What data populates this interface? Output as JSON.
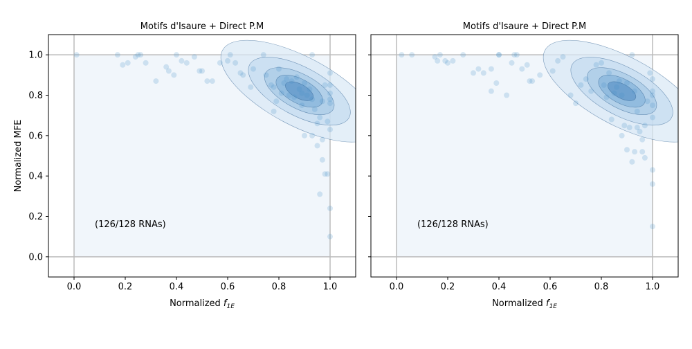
{
  "chart_data": [
    {
      "type": "scatter",
      "overlay": "kde-contours",
      "title": "Motifs d'Isaure + Direct P.M",
      "xlabel_main": "Normalized ",
      "xlabel_sub": "1E",
      "xlabel_italic": "f",
      "ylabel": "Normalized MFE",
      "annotation": "(126/128 RNAs)",
      "xlim": [
        -0.1,
        1.1
      ],
      "ylim": [
        -0.1,
        1.1
      ],
      "xticks": [
        "0.0",
        "0.2",
        "0.4",
        "0.6",
        "0.8",
        "1.0"
      ],
      "yticks": [
        "0.0",
        "0.2",
        "0.4",
        "0.6",
        "0.8",
        "1.0"
      ],
      "color": "#4a90c8",
      "kde_peak": [
        0.88,
        0.82
      ],
      "points": [
        [
          0.01,
          1.0
        ],
        [
          0.17,
          1.0
        ],
        [
          0.19,
          0.95
        ],
        [
          0.21,
          0.96
        ],
        [
          0.24,
          0.99
        ],
        [
          0.25,
          1.0
        ],
        [
          0.26,
          1.0
        ],
        [
          0.28,
          0.96
        ],
        [
          0.32,
          0.87
        ],
        [
          0.36,
          0.94
        ],
        [
          0.37,
          0.92
        ],
        [
          0.39,
          0.9
        ],
        [
          0.4,
          1.0
        ],
        [
          0.42,
          0.97
        ],
        [
          0.44,
          0.96
        ],
        [
          0.47,
          0.99
        ],
        [
          0.49,
          0.92
        ],
        [
          0.5,
          0.92
        ],
        [
          0.52,
          0.87
        ],
        [
          0.54,
          0.87
        ],
        [
          0.57,
          0.96
        ],
        [
          0.6,
          0.97
        ],
        [
          0.61,
          1.0
        ],
        [
          0.63,
          0.96
        ],
        [
          0.65,
          0.91
        ],
        [
          0.66,
          0.9
        ],
        [
          0.69,
          0.84
        ],
        [
          0.7,
          0.93
        ],
        [
          0.74,
          1.0
        ],
        [
          0.75,
          0.9
        ],
        [
          0.77,
          0.85
        ],
        [
          0.78,
          0.84
        ],
        [
          0.78,
          0.72
        ],
        [
          0.79,
          0.77
        ],
        [
          0.8,
          0.93
        ],
        [
          0.81,
          0.81
        ],
        [
          0.82,
          0.86
        ],
        [
          0.83,
          0.88
        ],
        [
          0.84,
          0.8
        ],
        [
          0.85,
          0.87
        ],
        [
          0.86,
          0.79
        ],
        [
          0.87,
          0.89
        ],
        [
          0.88,
          0.83
        ],
        [
          0.89,
          0.81
        ],
        [
          0.89,
          0.75
        ],
        [
          0.9,
          0.6
        ],
        [
          0.9,
          0.86
        ],
        [
          0.91,
          0.8
        ],
        [
          0.92,
          0.83
        ],
        [
          0.93,
          0.6
        ],
        [
          0.93,
          1.0
        ],
        [
          0.93,
          0.78
        ],
        [
          0.94,
          0.73
        ],
        [
          0.95,
          0.66
        ],
        [
          0.95,
          0.55
        ],
        [
          0.96,
          0.69
        ],
        [
          0.96,
          0.31
        ],
        [
          0.97,
          0.58
        ],
        [
          0.97,
          0.77
        ],
        [
          0.97,
          0.48
        ],
        [
          0.98,
          0.41
        ],
        [
          0.98,
          0.85
        ],
        [
          0.99,
          0.41
        ],
        [
          0.99,
          0.67
        ],
        [
          1.0,
          0.91
        ],
        [
          1.0,
          0.85
        ],
        [
          1.0,
          0.81
        ],
        [
          1.0,
          0.78
        ],
        [
          1.0,
          0.76
        ],
        [
          1.0,
          0.63
        ],
        [
          1.0,
          0.24
        ],
        [
          1.0,
          0.1
        ]
      ]
    },
    {
      "type": "scatter",
      "overlay": "kde-contours",
      "title": "Motifs d'Isaure + Direct P.M",
      "xlabel_main": "Normalized ",
      "xlabel_sub": "1E",
      "xlabel_italic": "f",
      "ylabel": "",
      "annotation": "(126/128 RNAs)",
      "xlim": [
        -0.1,
        1.1
      ],
      "ylim": [
        -0.1,
        1.1
      ],
      "xticks": [
        "0.0",
        "0.2",
        "0.4",
        "0.6",
        "0.8",
        "1.0"
      ],
      "yticks": [
        "0.0",
        "0.2",
        "0.4",
        "0.6",
        "0.8",
        "1.0"
      ],
      "color": "#4a90c8",
      "kde_peak": [
        0.88,
        0.82
      ],
      "points": [
        [
          0.02,
          1.0
        ],
        [
          0.06,
          1.0
        ],
        [
          0.15,
          0.99
        ],
        [
          0.16,
          0.97
        ],
        [
          0.17,
          1.0
        ],
        [
          0.19,
          0.97
        ],
        [
          0.2,
          0.96
        ],
        [
          0.22,
          0.97
        ],
        [
          0.26,
          1.0
        ],
        [
          0.3,
          0.91
        ],
        [
          0.32,
          0.93
        ],
        [
          0.34,
          0.91
        ],
        [
          0.37,
          0.93
        ],
        [
          0.37,
          0.82
        ],
        [
          0.39,
          0.86
        ],
        [
          0.4,
          1.0
        ],
        [
          0.4,
          1.0
        ],
        [
          0.43,
          0.8
        ],
        [
          0.45,
          0.96
        ],
        [
          0.46,
          1.0
        ],
        [
          0.47,
          1.0
        ],
        [
          0.49,
          0.93
        ],
        [
          0.51,
          0.95
        ],
        [
          0.52,
          0.87
        ],
        [
          0.53,
          0.87
        ],
        [
          0.56,
          0.9
        ],
        [
          0.61,
          0.92
        ],
        [
          0.63,
          0.97
        ],
        [
          0.65,
          0.99
        ],
        [
          0.68,
          0.8
        ],
        [
          0.7,
          0.76
        ],
        [
          0.72,
          0.85
        ],
        [
          0.74,
          0.88
        ],
        [
          0.76,
          0.82
        ],
        [
          0.78,
          0.95
        ],
        [
          0.8,
          0.96
        ],
        [
          0.81,
          0.85
        ],
        [
          0.82,
          0.79
        ],
        [
          0.83,
          0.91
        ],
        [
          0.84,
          0.68
        ],
        [
          0.85,
          0.81
        ],
        [
          0.86,
          0.84
        ],
        [
          0.87,
          0.87
        ],
        [
          0.88,
          0.6
        ],
        [
          0.88,
          0.8
        ],
        [
          0.89,
          0.65
        ],
        [
          0.9,
          0.53
        ],
        [
          0.9,
          0.86
        ],
        [
          0.91,
          0.64
        ],
        [
          0.92,
          0.47
        ],
        [
          0.92,
          1.0
        ],
        [
          0.93,
          0.52
        ],
        [
          0.93,
          0.82
        ],
        [
          0.94,
          0.64
        ],
        [
          0.94,
          0.72
        ],
        [
          0.95,
          0.62
        ],
        [
          0.96,
          0.58
        ],
        [
          0.96,
          0.52
        ],
        [
          0.97,
          0.49
        ],
        [
          0.97,
          0.65
        ],
        [
          0.98,
          0.77
        ],
        [
          0.99,
          0.91
        ],
        [
          1.0,
          0.88
        ],
        [
          1.0,
          0.82
        ],
        [
          1.0,
          0.8
        ],
        [
          1.0,
          0.75
        ],
        [
          1.0,
          0.69
        ],
        [
          1.0,
          0.43
        ],
        [
          1.0,
          0.36
        ],
        [
          1.0,
          0.15
        ]
      ]
    }
  ]
}
